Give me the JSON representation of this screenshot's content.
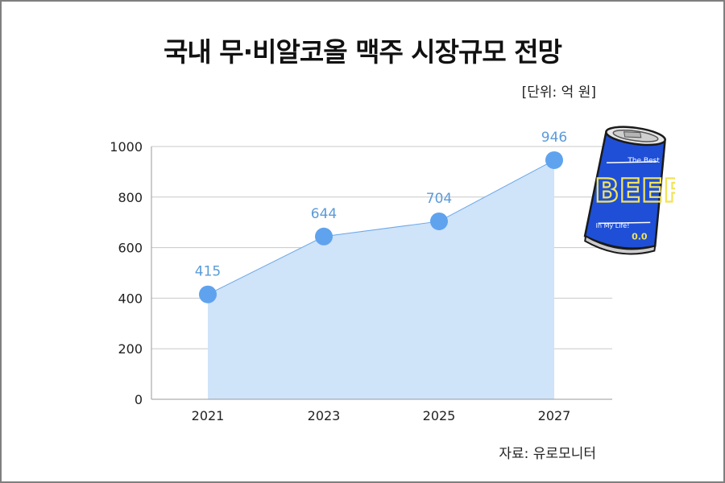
{
  "title": "국내 무·비알코올 맥주 시장규모 전망",
  "unit": "[단위: 억 원]",
  "source": "자료: 유로모니터",
  "colors": {
    "line": "#6aa8e8",
    "area": "#cfe3f9",
    "point": "#5fa3ee",
    "label": "#5b9bd9",
    "grid": "#c8c8c8",
    "can": "#1f4fd6",
    "can_text": "#f2e35a"
  },
  "illustration": {
    "text_main": "BEER",
    "text_top": "The Best",
    "text_bottom": "In My Life!",
    "text_abv": "0.0"
  },
  "chart_data": {
    "type": "area",
    "categories": [
      "2021",
      "2023",
      "2025",
      "2027"
    ],
    "values": [
      415,
      644,
      704,
      946
    ],
    "data_labels": [
      "415",
      "644",
      "704",
      "946"
    ],
    "ylim": [
      0,
      1000
    ],
    "yticks": [
      "0",
      "200",
      "400",
      "600",
      "800",
      "1000"
    ],
    "grid": true,
    "markers": true
  }
}
